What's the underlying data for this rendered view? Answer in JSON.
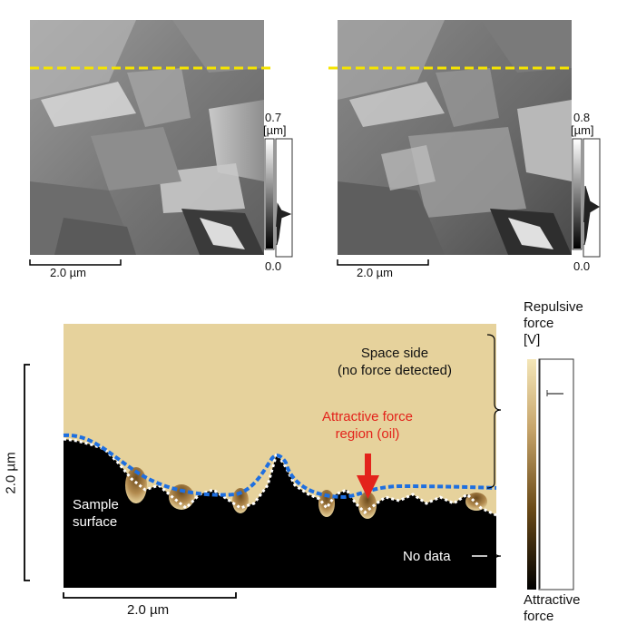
{
  "top_left_panel": {
    "scalebar_label": "2.0 µm",
    "colorbar_max": "0.7",
    "colorbar_unit": "[µm]",
    "colorbar_min": "0.0"
  },
  "top_right_panel": {
    "scalebar_label": "2.0 µm",
    "colorbar_max": "0.8",
    "colorbar_unit": "[µm]",
    "colorbar_min": "0.0"
  },
  "bottom_panel": {
    "x_scalebar_label": "2.0 µm",
    "y_scalebar_label": "2.0 µm",
    "space_side_label": "Space side\n(no force detected)",
    "attractive_region_label": "Attractive force\nregion (oil)",
    "sample_surface_label": "Sample\nsurface",
    "no_data_label": "No data",
    "colorbar_top": "Repulsive\nforce\n[V]",
    "colorbar_bottom": "Attractive\nforce"
  },
  "colors": {
    "dashed_line_top": "#f5e400",
    "dashed_line_bottom": "#1e6fe0",
    "arrow": "#e3231b",
    "space_fill": "#e6d29c",
    "sample_fill": "#000000"
  }
}
